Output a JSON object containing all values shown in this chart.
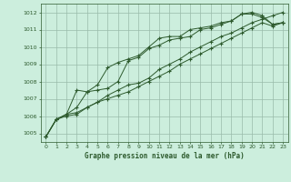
{
  "title": "Graphe pression niveau de la mer (hPa)",
  "bg_color": "#cceedd",
  "grid_color": "#99bbaa",
  "line_color": "#2d5a2d",
  "xlim": [
    -0.5,
    23.5
  ],
  "ylim": [
    1004.5,
    1012.5
  ],
  "yticks": [
    1005,
    1006,
    1007,
    1008,
    1009,
    1010,
    1011,
    1012
  ],
  "xticks": [
    0,
    1,
    2,
    3,
    4,
    5,
    6,
    7,
    8,
    9,
    10,
    11,
    12,
    13,
    14,
    15,
    16,
    17,
    18,
    19,
    20,
    21,
    22,
    23
  ],
  "series": [
    [
      1004.8,
      1005.8,
      1006.1,
      1006.5,
      1007.4,
      1007.5,
      1007.6,
      1008.0,
      1009.2,
      1009.4,
      1009.9,
      1010.1,
      1010.4,
      1010.5,
      1010.6,
      1011.0,
      1011.1,
      1011.3,
      1011.5,
      1011.9,
      1011.9,
      1011.7,
      1011.3,
      1011.4
    ],
    [
      1004.8,
      1005.8,
      1006.1,
      1007.5,
      1007.4,
      1007.8,
      1008.8,
      1009.1,
      1009.3,
      1009.5,
      1010.0,
      1010.5,
      1010.6,
      1010.6,
      1011.0,
      1011.1,
      1011.2,
      1011.4,
      1011.5,
      1011.9,
      1012.0,
      1011.8,
      1011.3,
      1011.4
    ],
    [
      1004.8,
      1005.8,
      1006.0,
      1006.1,
      1006.5,
      1006.8,
      1007.2,
      1007.5,
      1007.8,
      1007.9,
      1008.2,
      1008.7,
      1009.0,
      1009.3,
      1009.7,
      1010.0,
      1010.3,
      1010.6,
      1010.8,
      1011.1,
      1011.4,
      1011.6,
      1011.8,
      1012.0
    ],
    [
      1004.8,
      1005.8,
      1006.1,
      1006.2,
      1006.5,
      1006.8,
      1007.0,
      1007.2,
      1007.4,
      1007.7,
      1008.0,
      1008.3,
      1008.6,
      1009.0,
      1009.3,
      1009.6,
      1009.9,
      1010.2,
      1010.5,
      1010.8,
      1011.1,
      1011.4,
      1011.2,
      1011.4
    ]
  ]
}
